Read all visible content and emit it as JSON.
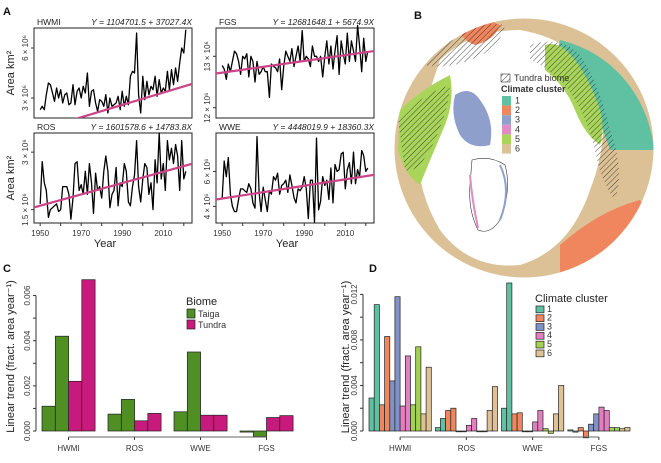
{
  "figure": {
    "panels": [
      "A",
      "B",
      "C",
      "D"
    ]
  },
  "chart_data": [
    {
      "panel": "A",
      "type": "line",
      "xlabel": "Year",
      "ylabel": "Area km²",
      "subplots": [
        {
          "name": "HWMI",
          "equation": "Y = 1104701.5 + 37027.4X",
          "intercept": 1104701.5,
          "slope": 37027.4,
          "yticks": [
            "3 × 10⁶",
            "6 × 10⁶"
          ],
          "ytick_values": [
            3000000,
            6000000
          ],
          "ylim": [
            1800000,
            7200000
          ],
          "x": [
            1950,
            1951,
            1952,
            1953,
            1954,
            1955,
            1956,
            1957,
            1958,
            1959,
            1960,
            1961,
            1962,
            1963,
            1964,
            1965,
            1966,
            1967,
            1968,
            1969,
            1970,
            1971,
            1972,
            1973,
            1974,
            1975,
            1976,
            1977,
            1978,
            1979,
            1980,
            1981,
            1982,
            1983,
            1984,
            1985,
            1986,
            1987,
            1988,
            1989,
            1990,
            1991,
            1992,
            1993,
            1994,
            1995,
            1996,
            1997,
            1998,
            1999,
            2000,
            2001,
            2002,
            2003,
            2004,
            2005,
            2006,
            2007,
            2008,
            2009,
            2010,
            2011,
            2012,
            2013,
            2014,
            2015,
            2016,
            2017,
            2018,
            2019,
            2020,
            2021
          ],
          "values": [
            2300000,
            2500000,
            2300000,
            3200000,
            3900000,
            3800000,
            3300000,
            2800000,
            3600000,
            3000000,
            3500000,
            2700000,
            3200000,
            3300000,
            2600000,
            2700000,
            3800000,
            2600000,
            3400000,
            3600000,
            3000000,
            3700000,
            3300000,
            4500000,
            2500000,
            3400000,
            3500000,
            2700000,
            2200000,
            2900000,
            2800000,
            2500000,
            3200000,
            2100000,
            3000000,
            2500000,
            2600000,
            2700000,
            3100000,
            2300000,
            3400000,
            2500000,
            3100000,
            2600000,
            4300000,
            4600000,
            4500000,
            6900000,
            3200000,
            2100000,
            4300000,
            2900000,
            4000000,
            3200000,
            3700000,
            3500000,
            4300000,
            3100000,
            4100000,
            3300000,
            3600000,
            3400000,
            4600000,
            3500000,
            4700000,
            3800000,
            4800000,
            4000000,
            5100000,
            6000000,
            5700000,
            7100000
          ],
          "line_color": "#000000",
          "trend_color": "#cc4488"
        },
        {
          "name": "FGS",
          "equation": "Y = 12681648.1 + 5674.9X",
          "intercept": 12681648.1,
          "slope": 5674.9,
          "yticks": [
            "12 × 10⁶",
            "13 × 10⁶"
          ],
          "ytick_values": [
            12000000,
            13000000
          ],
          "ylim": [
            11800000,
            13550000
          ],
          "x": [
            1950,
            1951,
            1952,
            1953,
            1954,
            1955,
            1956,
            1957,
            1958,
            1959,
            1960,
            1961,
            1962,
            1963,
            1964,
            1965,
            1966,
            1967,
            1968,
            1969,
            1970,
            1971,
            1972,
            1973,
            1974,
            1975,
            1976,
            1977,
            1978,
            1979,
            1980,
            1981,
            1982,
            1983,
            1984,
            1985,
            1986,
            1987,
            1988,
            1989,
            1990,
            1991,
            1992,
            1993,
            1994,
            1995,
            1996,
            1997,
            1998,
            1999,
            2000,
            2001,
            2002,
            2003,
            2004,
            2005,
            2006,
            2007,
            2008,
            2009,
            2010,
            2011,
            2012,
            2013,
            2014,
            2015,
            2016,
            2017,
            2018,
            2019,
            2020,
            2021
          ],
          "values": [
            12820000,
            12750000,
            12550000,
            12850000,
            12700000,
            12900000,
            13100000,
            13050000,
            12900000,
            12650000,
            13000000,
            12950000,
            13050000,
            12600000,
            13000000,
            12900000,
            12500000,
            12900000,
            12650000,
            12700000,
            12800000,
            12700000,
            12700000,
            12200000,
            12850000,
            12800000,
            12780000,
            12700000,
            12950000,
            12350000,
            12800000,
            13100000,
            13000000,
            12900000,
            13150000,
            12800000,
            13000000,
            13200000,
            12900000,
            13500000,
            12900000,
            13000000,
            12950000,
            12800000,
            13200000,
            13000000,
            13000000,
            12900000,
            13000000,
            12600000,
            13000000,
            13300000,
            12850000,
            13200000,
            12750000,
            13100000,
            13400000,
            12650000,
            13300000,
            13050000,
            12850000,
            13450000,
            12900000,
            13300000,
            13100000,
            12900000,
            13600000,
            13200000,
            12700000,
            13350000,
            12900000,
            13100000
          ],
          "line_color": "#000000",
          "trend_color": "#cc4488"
        },
        {
          "name": "ROS",
          "equation": "Y = 1601578.6 + 14783.8X",
          "intercept": 1601578.6,
          "slope": 14783.8,
          "yticks": [
            "1.5 × 10⁶",
            "3 × 10⁶"
          ],
          "ytick_values": [
            1500000,
            3000000
          ],
          "ylim": [
            1150000,
            3500000
          ],
          "x": [
            1950,
            1951,
            1952,
            1953,
            1954,
            1955,
            1956,
            1957,
            1958,
            1959,
            1960,
            1961,
            1962,
            1963,
            1964,
            1965,
            1966,
            1967,
            1968,
            1969,
            1970,
            1971,
            1972,
            1973,
            1974,
            1975,
            1976,
            1977,
            1978,
            1979,
            1980,
            1981,
            1982,
            1983,
            1984,
            1985,
            1986,
            1987,
            1988,
            1989,
            1990,
            1991,
            1992,
            1993,
            1994,
            1995,
            1996,
            1997,
            1998,
            1999,
            2000,
            2001,
            2002,
            2003,
            2004,
            2005,
            2006,
            2007,
            2008,
            2009,
            2010,
            2011,
            2012,
            2013,
            2014,
            2015,
            2016,
            2017,
            2018,
            2019,
            2020,
            2021
          ],
          "values": [
            1650000,
            2750000,
            2200000,
            2000000,
            1300000,
            1500000,
            1550000,
            1600000,
            1650000,
            1450000,
            1500000,
            2100000,
            2100000,
            2100000,
            1900000,
            1250000,
            1800000,
            2700000,
            2750000,
            2000000,
            2150000,
            1900000,
            2500000,
            1900000,
            2700000,
            2200000,
            1400000,
            2450000,
            2000000,
            2100000,
            1800000,
            2500000,
            2900000,
            2500000,
            1550000,
            1900000,
            2000000,
            2600000,
            1600000,
            2200000,
            2100000,
            2700000,
            2500000,
            1700000,
            1600000,
            2100000,
            2400000,
            3300000,
            2100000,
            1700000,
            2300000,
            2700000,
            2600000,
            1900000,
            2200000,
            1500000,
            2800000,
            2200000,
            3500000,
            2300000,
            2700000,
            2000000,
            3300000,
            2800000,
            3100000,
            2700000,
            3200000,
            2900000,
            2000000,
            3300000,
            2300000,
            2500000
          ],
          "line_color": "#000000",
          "trend_color": "#cc4488"
        },
        {
          "name": "WWE",
          "equation": "Y = 4448019.9 + 18360.3X",
          "intercept": 4448019.9,
          "slope": 18360.3,
          "yticks": [
            "4 × 10⁶",
            "6 × 10⁶"
          ],
          "ytick_values": [
            4000000,
            6000000
          ],
          "ylim": [
            3050000,
            8200000
          ],
          "x": [
            1950,
            1951,
            1952,
            1953,
            1954,
            1955,
            1956,
            1957,
            1958,
            1959,
            1960,
            1961,
            1962,
            1963,
            1964,
            1965,
            1966,
            1967,
            1968,
            1969,
            1970,
            1971,
            1972,
            1973,
            1974,
            1975,
            1976,
            1977,
            1978,
            1979,
            1980,
            1981,
            1982,
            1983,
            1984,
            1985,
            1986,
            1987,
            1988,
            1989,
            1990,
            1991,
            1992,
            1993,
            1994,
            1995,
            1996,
            1997,
            1998,
            1999,
            2000,
            2001,
            2002,
            2003,
            2004,
            2005,
            2006,
            2007,
            2008,
            2009,
            2010,
            2011,
            2012,
            2013,
            2014,
            2015,
            2016,
            2017,
            2018,
            2019,
            2020,
            2021
          ],
          "values": [
            4500000,
            6600000,
            5700000,
            6800000,
            4700000,
            4000000,
            3700000,
            3700000,
            4400000,
            5000000,
            5000000,
            4900000,
            4800000,
            5300000,
            5000000,
            4200000,
            3900000,
            8000000,
            4800000,
            3700000,
            5100000,
            4400000,
            3700000,
            4900000,
            4700000,
            5700000,
            5500000,
            5900000,
            4700000,
            5200000,
            5300000,
            5500000,
            4800000,
            5800000,
            5200000,
            4500000,
            4200000,
            5000000,
            4900000,
            5100000,
            5700000,
            5000000,
            3300000,
            5500000,
            5500000,
            3100000,
            7900000,
            3800000,
            4300000,
            5700000,
            5200000,
            5500000,
            4400000,
            6200000,
            4200000,
            6400000,
            6000000,
            6100000,
            7000000,
            7100000,
            5000000,
            6100000,
            6500000,
            5300000,
            7100000,
            5300000,
            6100000,
            5700000,
            7200000,
            6900000,
            6000000,
            6200000
          ],
          "line_color": "#000000",
          "trend_color": "#cc4488"
        }
      ],
      "xticks": [
        "1950",
        "1970",
        "1990",
        "2010"
      ]
    },
    {
      "panel": "B",
      "type": "map",
      "title": "",
      "legend": {
        "hatch_label": "Tundra biome",
        "title": "Climate cluster",
        "entries": [
          {
            "label": "1",
            "color": "#5fc1a2"
          },
          {
            "label": "2",
            "color": "#f0865e"
          },
          {
            "label": "3",
            "color": "#8f9fcb"
          },
          {
            "label": "4",
            "color": "#e28ac2"
          },
          {
            "label": "5",
            "color": "#a9d55a"
          },
          {
            "label": "6",
            "color": "#dcc196"
          }
        ]
      }
    },
    {
      "panel": "C",
      "type": "bar",
      "categories": [
        "HWMI",
        "ROS",
        "WWE",
        "FGS"
      ],
      "ylabel": "Linear trend (fract. area year⁻¹)",
      "xlabel": "",
      "ylim": [
        0,
        0.0066
      ],
      "yticks": [
        "0.000",
        "0.002",
        "0.004",
        "0.006"
      ],
      "ytick_values": [
        0,
        0.002,
        0.004,
        0.006
      ],
      "legend": {
        "title": "Biome",
        "position": "top-center"
      },
      "series": [
        {
          "name": "Taiga",
          "color": "#4f8f23",
          "values_pairs": [
            [
              0.0011,
              0.0042
            ],
            [
              0.00075,
              0.0014
            ],
            [
              0.00085,
              0.0035
            ],
            [
              -5e-05,
              -0.00025
            ]
          ]
        },
        {
          "name": "Tundra",
          "color": "#c81a7d",
          "values_pairs": [
            [
              0.0022,
              0.0067
            ],
            [
              0.00045,
              0.00078
            ],
            [
              0.0007,
              0.0007
            ],
            [
              0.0006,
              0.00068
            ]
          ]
        }
      ]
    },
    {
      "panel": "D",
      "type": "bar",
      "categories": [
        "HWMI",
        "ROS",
        "WWE",
        "FGS"
      ],
      "ylabel": "Linear trend (fract. area year⁻¹)",
      "xlabel": "",
      "ylim": [
        0,
        0.013
      ],
      "yticks": [
        "0.000",
        "0.004",
        "0.008",
        "0.012"
      ],
      "ytick_values": [
        0,
        0.004,
        0.008,
        0.012
      ],
      "legend": {
        "title": "Climate cluster",
        "position": "top-right"
      },
      "series": [
        {
          "name": "1",
          "color": "#5fc1a2",
          "values_pairs": [
            [
              0.0029,
              0.0111
            ],
            [
              0.0003,
              0.0011
            ],
            [
              0.002,
              0.013
            ],
            [
              0.0001,
              -0.0001
            ]
          ]
        },
        {
          "name": "2",
          "color": "#f0865e",
          "values_pairs": [
            [
              0.0023,
              0.0083
            ],
            [
              0.0018,
              0.002
            ],
            [
              0.0015,
              0.0016
            ],
            [
              0.0003,
              -0.0006
            ]
          ]
        },
        {
          "name": "3",
          "color": "#8193c6",
          "values_pairs": [
            [
              0.0044,
              0.0118
            ],
            [
              0.0,
              0.0
            ],
            [
              0.0,
              0.0
            ],
            [
              0.0006,
              0.0015
            ]
          ]
        },
        {
          "name": "4",
          "color": "#e17fc0",
          "values_pairs": [
            [
              0.0022,
              0.0066
            ],
            [
              0.0005,
              0.0011
            ],
            [
              0.0008,
              0.0018
            ],
            [
              0.0021,
              0.0018
            ]
          ]
        },
        {
          "name": "5",
          "color": "#a3d153",
          "values_pairs": [
            [
              0.0023,
              0.0074
            ],
            [
              0.0,
              0.0
            ],
            [
              0.0002,
              -0.0002
            ],
            [
              0.0003,
              0.0003
            ]
          ]
        },
        {
          "name": "6",
          "color": "#dec294",
          "values_pairs": [
            [
              0.0015,
              0.0056
            ],
            [
              0.0018,
              0.0039
            ],
            [
              0.0015,
              0.004
            ],
            [
              0.0002,
              0.0003
            ]
          ]
        }
      ]
    }
  ]
}
